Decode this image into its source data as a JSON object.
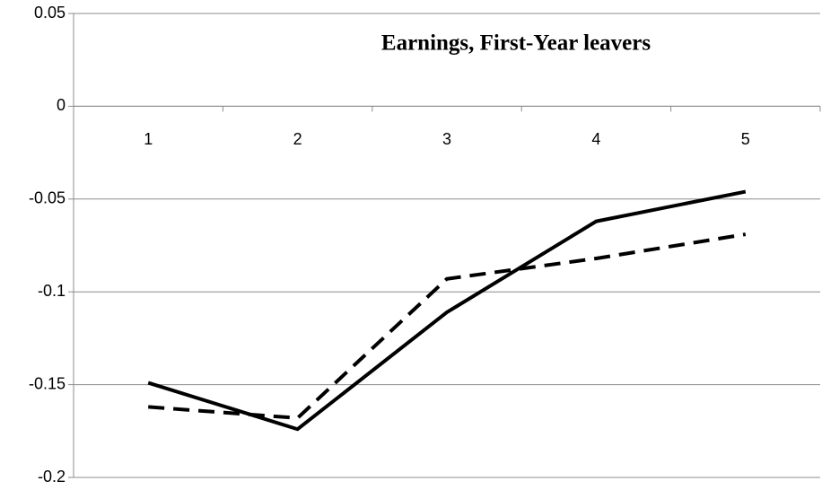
{
  "chart_data": {
    "type": "line",
    "title": "Earnings, First-Year leavers",
    "categories": [
      "1",
      "2",
      "3",
      "4",
      "5"
    ],
    "series": [
      {
        "color": "#000000",
        "style": "solid",
        "values": [
          -0.149,
          -0.174,
          -0.111,
          -0.062,
          -0.046
        ]
      },
      {
        "color": "#000000",
        "style": "dashed",
        "values": [
          -0.162,
          -0.168,
          -0.093,
          -0.082,
          -0.069
        ]
      }
    ],
    "ylim": [
      -0.2,
      0.05
    ],
    "yticks": [
      -0.2,
      -0.15,
      -0.1,
      -0.05,
      0,
      0.05
    ],
    "grid": true
  }
}
